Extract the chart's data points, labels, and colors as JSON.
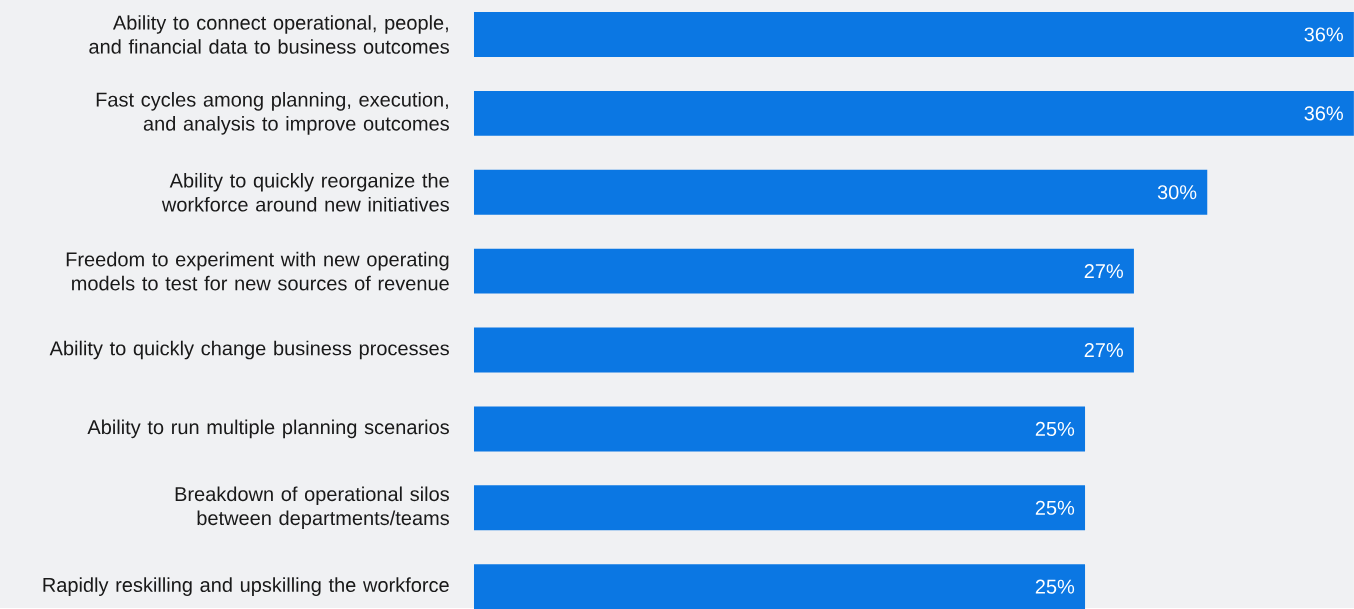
{
  "chart_data": {
    "type": "bar",
    "orientation": "horizontal",
    "categories": [
      "Ability to connect operational, people, and financial data to business outcomes",
      "Fast cycles among planning, execution, and analysis to improve outcomes",
      "Ability to quickly reorganize the workforce around new initiatives",
      "Freedom to experiment with new operating models to test for new sources of revenue",
      "Ability to quickly change business processes",
      "Ability to run multiple planning scenarios",
      "Breakdown of operational silos between departments/teams",
      "Rapidly reskilling and upskilling the workforce"
    ],
    "values": [
      36,
      36,
      30,
      27,
      27,
      25,
      25,
      25
    ],
    "value_labels": [
      "36%",
      "36%",
      "30%",
      "27%",
      "27%",
      "25%",
      "25%",
      "25%"
    ],
    "color": "#0b77e3",
    "xlim": [
      0,
      36
    ],
    "tick_labels": "y"
  }
}
